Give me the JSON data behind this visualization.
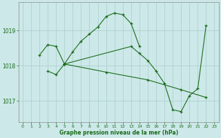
{
  "title": "Graphe pression niveau de la mer (hPa)",
  "background_color": "#cce8e8",
  "grid_color": "#aacccc",
  "line_color": "#1a6b1a",
  "marker_color": "#1a6b1a",
  "tick_color": "#1a6b1a",
  "ylim": [
    1016.4,
    1019.8
  ],
  "yticks": [
    1017,
    1018,
    1019
  ],
  "xlim": [
    -0.5,
    23.5
  ],
  "xticks": [
    0,
    1,
    2,
    3,
    4,
    5,
    6,
    7,
    8,
    9,
    10,
    11,
    12,
    13,
    14,
    15,
    16,
    17,
    18,
    19,
    20,
    21,
    22,
    23
  ],
  "series": [
    {
      "x": [
        2,
        3,
        4,
        5,
        6,
        7,
        8,
        9,
        10,
        11,
        12,
        13,
        14
      ],
      "y": [
        1018.3,
        1018.6,
        1018.55,
        1018.05,
        1018.4,
        1018.7,
        1018.9,
        1019.1,
        1019.4,
        1019.5,
        1019.45,
        1019.2,
        1018.55
      ]
    },
    {
      "x": [
        5,
        13,
        14,
        15,
        16,
        17,
        18,
        19,
        20,
        21,
        22
      ],
      "y": [
        1018.05,
        1018.55,
        1018.35,
        1018.15,
        1017.85,
        1017.5,
        1016.75,
        1016.7,
        1017.15,
        1017.35,
        1019.15
      ]
    },
    {
      "x": [
        3,
        4,
        5
      ],
      "y": [
        1017.85,
        1017.75,
        1018.05
      ]
    },
    {
      "x": [
        5,
        10,
        15,
        19,
        22
      ],
      "y": [
        1018.05,
        1017.82,
        1017.6,
        1017.32,
        1017.1
      ]
    }
  ]
}
